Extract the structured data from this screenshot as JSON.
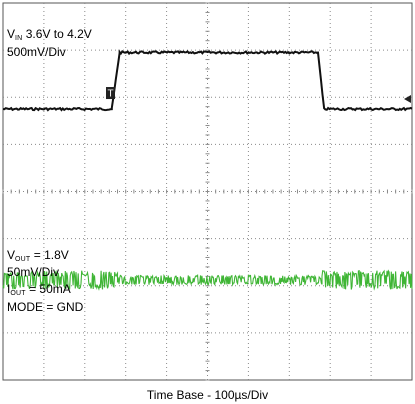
{
  "chart_data": {
    "type": "line",
    "grid": true,
    "x_divisions": 10,
    "y_divisions": 8,
    "xlabel": "Time Base - 100µs/Div",
    "colors": {
      "ch1": "#111111",
      "ch2": "#3fb535",
      "grid": "#8a8a8a"
    },
    "series": [
      {
        "name": "VIN",
        "color": "#111111",
        "scale_mV_per_div": 500,
        "unit_x": "div",
        "x": [
          0,
          2.66,
          2.85,
          7.7,
          7.85,
          10
        ],
        "y_volts": [
          3.6,
          3.6,
          4.2,
          4.2,
          3.6,
          3.6
        ],
        "ground_marker": "1",
        "trigger_marker": "T"
      },
      {
        "name": "VOUT",
        "color": "#3fb535",
        "scale_mV_per_div": 50,
        "nominal_volts": 1.8,
        "segments": [
          {
            "x_start": 0,
            "x_end": 2.8,
            "ripple_mVpp": 20
          },
          {
            "x_start": 2.8,
            "x_end": 7.8,
            "ripple_mVpp": 10
          },
          {
            "x_start": 7.8,
            "x_end": 10,
            "ripple_mVpp": 20
          }
        ]
      }
    ],
    "annotations": {
      "vin": {
        "sym": "V",
        "sub": "IN",
        "range": " 3.6V to 4.2V",
        "scale": "500mV/Div"
      },
      "vout": {
        "sym": "V",
        "sub": "OUT",
        "val": " = 1.8V",
        "scale": "50mV/Div"
      },
      "iout": {
        "sym": "I",
        "sub": "OUT",
        "val": " = 50mA"
      },
      "mode": "MODE = GND"
    }
  }
}
